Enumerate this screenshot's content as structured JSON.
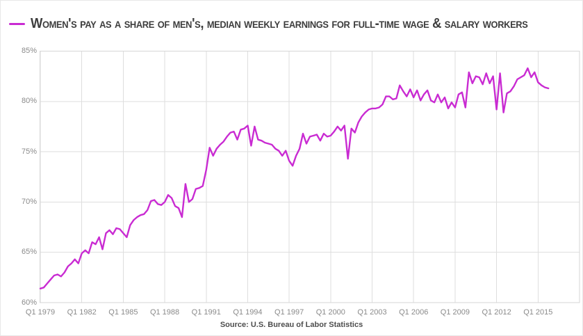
{
  "title": "Women's pay as a share of men's, median weekly earnings for full-time wage & salary workers",
  "source_note": "Source: U.S. Bureau of Labor Statistics",
  "colors": {
    "line": "#c92bd2",
    "grid": "#dedede",
    "plot_border": "#d6d6d6",
    "axis_text": "#8a8a8a",
    "title_text": "#3d3d3d",
    "source_text": "#4d4d4d"
  },
  "chart_data": {
    "type": "line",
    "frequency": "quarterly",
    "x_start": "Q1 1979",
    "x_end": "Q4 2015",
    "title": "Women's pay as a share of men's, median weekly earnings for full-time wage & salary workers",
    "xlabel": "",
    "ylabel": "",
    "ylim": [
      60,
      85
    ],
    "grid": "on",
    "legend_position": "top-left",
    "y_ticks": [
      {
        "label": "85%",
        "value": 85
      },
      {
        "label": "80%",
        "value": 80
      },
      {
        "label": "75%",
        "value": 75
      },
      {
        "label": "70%",
        "value": 70
      },
      {
        "label": "65%",
        "value": 65
      },
      {
        "label": "60%",
        "value": 60
      }
    ],
    "x_ticks": [
      {
        "label": "Q1 1979",
        "quarter_index": 0
      },
      {
        "label": "Q1 1982",
        "quarter_index": 12
      },
      {
        "label": "Q1 1985",
        "quarter_index": 24
      },
      {
        "label": "Q1 1988",
        "quarter_index": 36
      },
      {
        "label": "Q1 1991",
        "quarter_index": 48
      },
      {
        "label": "Q1 1994",
        "quarter_index": 60
      },
      {
        "label": "Q1 1997",
        "quarter_index": 72
      },
      {
        "label": "Q1 2000",
        "quarter_index": 84
      },
      {
        "label": "Q1 2003",
        "quarter_index": 96
      },
      {
        "label": "Q1 2006",
        "quarter_index": 108
      },
      {
        "label": "Q1 2009",
        "quarter_index": 120
      },
      {
        "label": "Q1 2012",
        "quarter_index": 132
      },
      {
        "label": "Q1 2015",
        "quarter_index": 144
      }
    ],
    "series": [
      {
        "name": "Women's pay as a share of men's (%)",
        "values": [
          61.4,
          61.5,
          61.9,
          62.3,
          62.7,
          62.8,
          62.6,
          63.0,
          63.6,
          63.9,
          64.3,
          63.9,
          64.9,
          65.2,
          64.9,
          66.0,
          65.8,
          66.5,
          65.3,
          66.9,
          67.2,
          66.8,
          67.4,
          67.3,
          66.9,
          66.5,
          67.7,
          68.2,
          68.5,
          68.7,
          68.8,
          69.2,
          70.1,
          70.2,
          69.8,
          69.7,
          70.0,
          70.7,
          70.4,
          69.6,
          69.4,
          68.5,
          71.8,
          70.0,
          70.3,
          71.3,
          71.4,
          71.6,
          73.2,
          75.4,
          74.6,
          75.3,
          75.7,
          76.0,
          76.5,
          76.9,
          77.0,
          76.2,
          77.2,
          77.3,
          77.6,
          75.6,
          77.5,
          76.2,
          76.1,
          75.9,
          75.8,
          75.7,
          75.3,
          75.1,
          74.6,
          75.1,
          74.1,
          73.6,
          74.6,
          75.3,
          76.8,
          75.8,
          76.5,
          76.6,
          76.7,
          76.1,
          76.8,
          76.5,
          76.6,
          77.0,
          77.5,
          77.1,
          77.6,
          74.3,
          77.3,
          76.9,
          77.9,
          78.5,
          78.9,
          79.2,
          79.3,
          79.3,
          79.4,
          79.7,
          80.5,
          80.5,
          80.2,
          80.3,
          81.6,
          81.0,
          80.5,
          81.2,
          80.4,
          81.1,
          80.1,
          80.7,
          81.1,
          80.1,
          79.9,
          80.7,
          79.9,
          80.4,
          79.3,
          79.9,
          79.4,
          80.7,
          80.9,
          79.4,
          82.9,
          81.8,
          82.5,
          82.4,
          81.7,
          82.8,
          81.8,
          82.5,
          79.2,
          82.8,
          78.9,
          80.8,
          81.0,
          81.5,
          82.2,
          82.4,
          82.6,
          83.3,
          82.4,
          82.9,
          81.9,
          81.6,
          81.4,
          81.3
        ]
      }
    ]
  }
}
